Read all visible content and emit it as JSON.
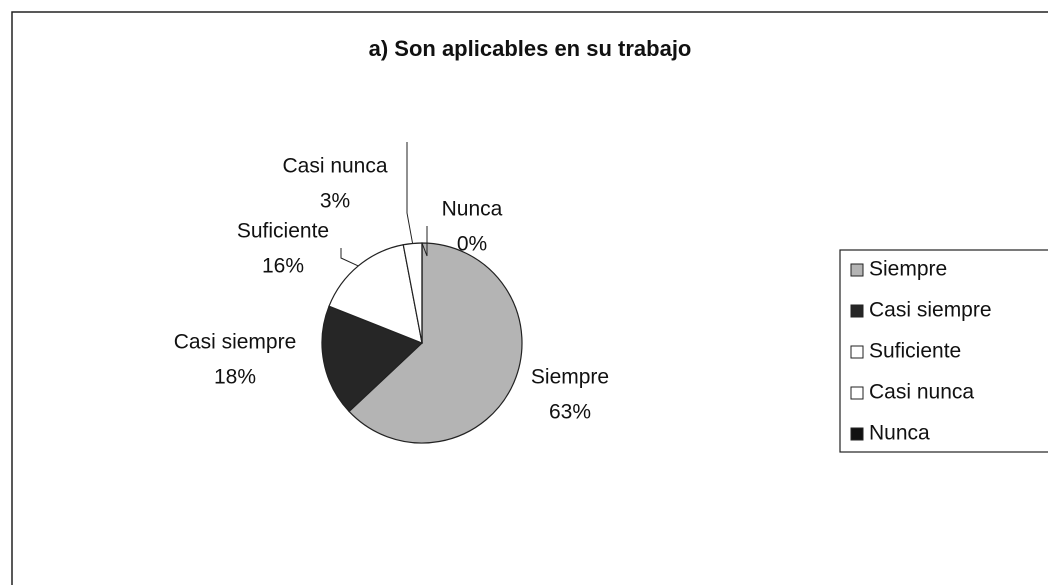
{
  "chart_data": {
    "type": "pie",
    "title": "a) Son aplicables en su trabajo",
    "categories": [
      "Siempre",
      "Casi siempre",
      "Suficiente",
      "Casi nunca",
      "Nunca"
    ],
    "values": [
      63,
      18,
      16,
      3,
      0
    ],
    "value_labels": [
      "63%",
      "18%",
      "16%",
      "3%",
      "0%"
    ],
    "colors": [
      "#b4b4b4",
      "#262626",
      "#ffffff",
      "#ffffff",
      "#111111"
    ],
    "legend": "right"
  }
}
